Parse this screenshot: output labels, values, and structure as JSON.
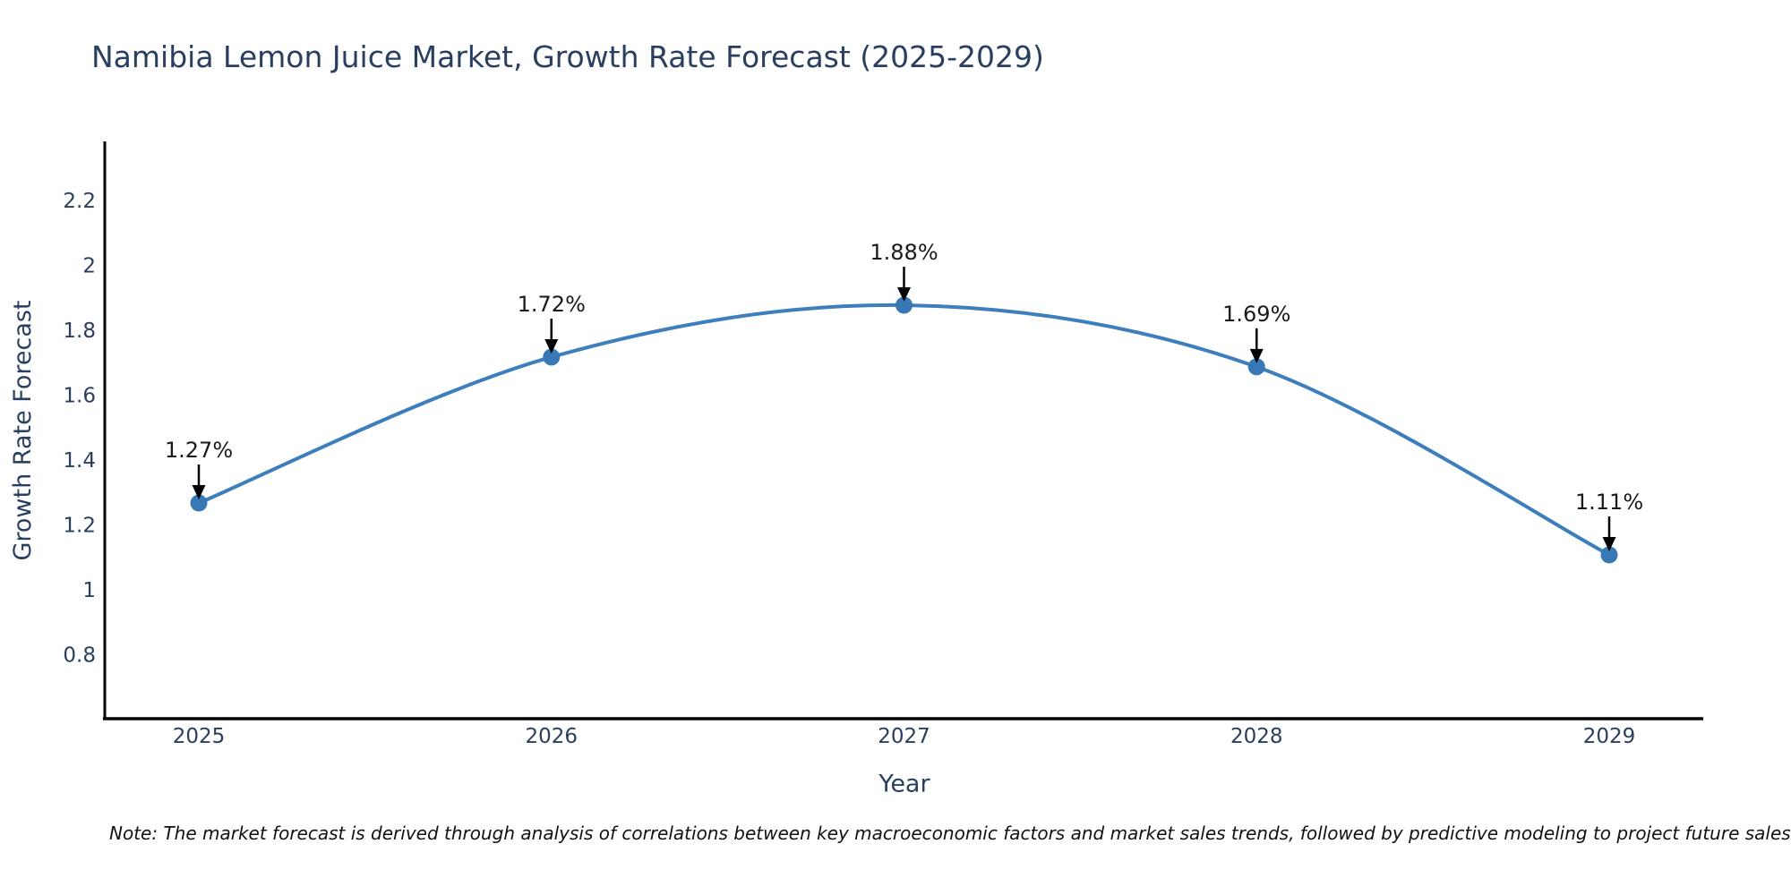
{
  "title": "Namibia Lemon Juice Market, Growth Rate Forecast (2025-2029)",
  "note": "Note: The market forecast is derived through analysis of correlations between key macroeconomic factors and market sales trends, followed by predictive modeling to project future sales",
  "chart_data": {
    "type": "line",
    "title": "Namibia Lemon Juice Market, Growth Rate Forecast (2025-2029)",
    "xlabel": "Year",
    "ylabel": "Growth Rate Forecast",
    "categories": [
      "2025",
      "2026",
      "2027",
      "2028",
      "2029"
    ],
    "series": [
      {
        "name": "Growth Rate Forecast",
        "values": [
          1.27,
          1.72,
          1.88,
          1.69,
          1.11
        ],
        "point_labels": [
          "1.27%",
          "1.72%",
          "1.88%",
          "1.69%",
          "1.11%"
        ]
      }
    ],
    "yticks": [
      0.8,
      1,
      1.2,
      1.4,
      1.6,
      1.8,
      2,
      2.2
    ],
    "ytick_labels": [
      "0.8",
      "1",
      "1.2",
      "1.4",
      "1.6",
      "1.8",
      "2",
      "2.2"
    ],
    "ylim": [
      0.605,
      2.385
    ],
    "grid": false,
    "legend": false,
    "line_shape": "spline",
    "colors": {
      "line": "#3d7ebc",
      "marker": "#3879b5",
      "axis": "#000000",
      "title": "#2a3f5f",
      "ticks": "#2a3f5f",
      "annotation": "#1a1a1a",
      "background": "#ffffff"
    }
  }
}
